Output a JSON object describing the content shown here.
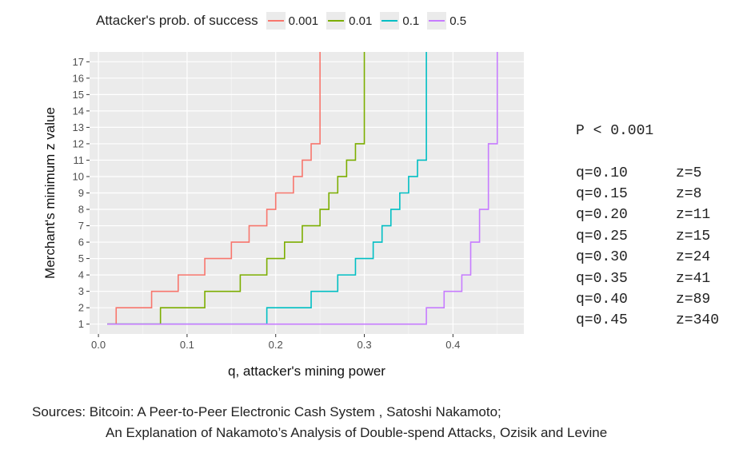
{
  "chart_data": {
    "type": "line",
    "step": true,
    "xlabel": "q, attacker's mining power",
    "ylabel": "Merchant's minimum z value",
    "xlim": [
      -0.01,
      0.48
    ],
    "ylim": [
      0.4,
      17.6
    ],
    "x_ticks": [
      0.0,
      0.1,
      0.2,
      0.3,
      0.4
    ],
    "x_tick_labels": [
      "0.0",
      "0.1",
      "0.2",
      "0.3",
      "0.4"
    ],
    "y_ticks": [
      1,
      2,
      3,
      4,
      5,
      6,
      7,
      8,
      9,
      10,
      11,
      12,
      13,
      14,
      15,
      16,
      17
    ],
    "grid": true,
    "legend": {
      "title": "Attacker's prob. of success",
      "position": "top"
    },
    "series": [
      {
        "name": "0.001",
        "color": "#f8766d",
        "x": [
          0.01,
          0.02,
          0.06,
          0.09,
          0.12,
          0.15,
          0.17,
          0.19,
          0.2,
          0.22,
          0.23,
          0.24,
          0.25
        ],
        "z": [
          1,
          2,
          3,
          4,
          5,
          6,
          7,
          8,
          9,
          10,
          11,
          12,
          17.6
        ]
      },
      {
        "name": "0.01",
        "color": "#7cae00",
        "x": [
          0.01,
          0.07,
          0.12,
          0.16,
          0.19,
          0.21,
          0.23,
          0.25,
          0.26,
          0.27,
          0.28,
          0.29,
          0.3
        ],
        "z": [
          1,
          2,
          3,
          4,
          5,
          6,
          7,
          8,
          9,
          10,
          11,
          12,
          17.6
        ]
      },
      {
        "name": "0.1",
        "color": "#00bfc4",
        "x": [
          0.01,
          0.19,
          0.24,
          0.27,
          0.29,
          0.31,
          0.32,
          0.33,
          0.34,
          0.35,
          0.36,
          0.37
        ],
        "z": [
          1,
          2,
          3,
          4,
          5,
          6,
          7,
          8,
          9,
          10,
          11,
          17.6
        ]
      },
      {
        "name": "0.5",
        "color": "#c77cff",
        "x": [
          0.01,
          0.37,
          0.39,
          0.41,
          0.42,
          0.43,
          0.44,
          0.45
        ],
        "z": [
          1,
          2,
          3,
          4,
          6,
          8,
          12,
          17.6
        ]
      }
    ]
  },
  "table": {
    "header": "P < 0.001",
    "rows": [
      {
        "q": "q=0.10",
        "z": "z=5"
      },
      {
        "q": "q=0.15",
        "z": "z=8"
      },
      {
        "q": "q=0.20",
        "z": "z=11"
      },
      {
        "q": "q=0.25",
        "z": "z=15"
      },
      {
        "q": "q=0.30",
        "z": "z=24"
      },
      {
        "q": "q=0.35",
        "z": "z=41"
      },
      {
        "q": "q=0.40",
        "z": "z=89"
      },
      {
        "q": "q=0.45",
        "z": "z=340"
      }
    ]
  },
  "sources": {
    "line1": "Sources: Bitcoin: A Peer-to-Peer Electronic Cash System , Satoshi Nakamoto;",
    "line2": "An Explanation of Nakamoto’s Analysis of Double-spend Attacks, Ozisik and Levine"
  }
}
